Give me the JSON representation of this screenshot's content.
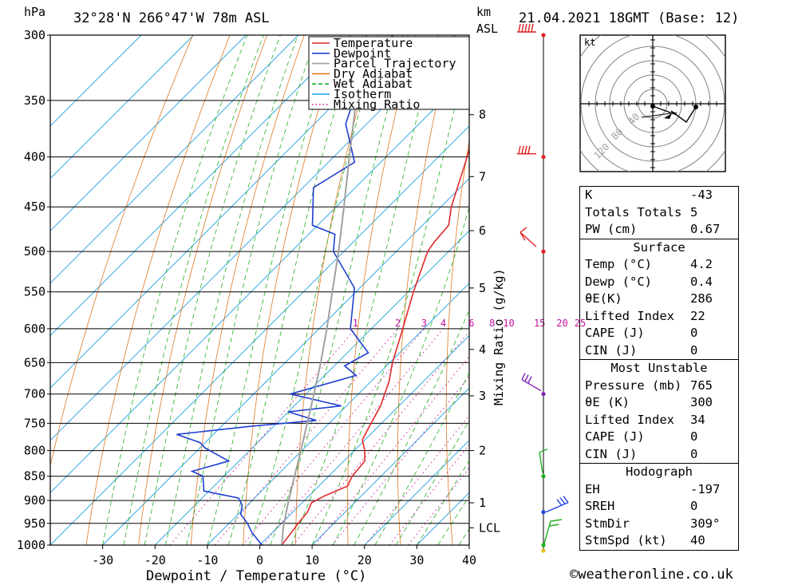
{
  "header": {
    "location": "32°28'N  266°47'W  78m  ASL",
    "datetime": "21.04.2021  18GMT  (Base: 12)",
    "pressure_unit": "hPa",
    "km_label": "km",
    "asl_label": "ASL"
  },
  "chart_data": {
    "type": "skew-t",
    "xlabel": "Dewpoint / Temperature (°C)",
    "ylabel_right": "Mixing Ratio (g/kg)",
    "pressure_ticks": [
      300,
      350,
      400,
      450,
      500,
      550,
      600,
      650,
      700,
      750,
      800,
      850,
      900,
      950,
      1000
    ],
    "temp_ticks": [
      -30,
      -20,
      -10,
      0,
      10,
      20,
      30,
      40
    ],
    "xlim": [
      -40,
      40
    ],
    "ylim": [
      1000,
      300
    ],
    "skew": 45,
    "km_ticks": [
      {
        "label": "8",
        "p": 362
      },
      {
        "label": "7",
        "p": 419
      },
      {
        "label": "6",
        "p": 476
      },
      {
        "label": "5",
        "p": 545
      },
      {
        "label": "4",
        "p": 630
      },
      {
        "label": "3",
        "p": 703
      },
      {
        "label": "2",
        "p": 800
      },
      {
        "label": "1",
        "p": 905
      },
      {
        "label": "LCL",
        "p": 960
      }
    ],
    "mixing_ratio_labels": [
      "1",
      "2",
      "3",
      "4",
      "6",
      "8",
      "10",
      "15",
      "20",
      "25"
    ],
    "mixing_ratio_values": [
      1,
      2,
      3,
      4,
      6,
      8,
      10,
      15,
      20,
      25
    ],
    "legend": [
      {
        "name": "Temperature",
        "color": "#e0282a",
        "style": "solid"
      },
      {
        "name": "Dewpoint",
        "color": "#1f3fd0",
        "style": "solid"
      },
      {
        "name": "Parcel Trajectory",
        "color": "#a0a0a0",
        "style": "solid"
      },
      {
        "name": "Dry Adiabat",
        "color": "#e07820",
        "style": "solid"
      },
      {
        "name": "Wet Adiabat",
        "color": "#20b020",
        "style": "dashed"
      },
      {
        "name": "Isotherm",
        "color": "#1fa0e0",
        "style": "solid"
      },
      {
        "name": "Mixing Ratio",
        "color": "#d020a0",
        "style": "dotted"
      }
    ],
    "series": [
      {
        "name": "Temperature",
        "color": "#e0282a",
        "points": [
          [
            1000,
            4.2
          ],
          [
            980,
            3.8
          ],
          [
            950,
            3.2
          ],
          [
            925,
            2.8
          ],
          [
            905,
            1.8
          ],
          [
            890,
            3.0
          ],
          [
            870,
            5.5
          ],
          [
            850,
            4.5
          ],
          [
            820,
            4.0
          ],
          [
            800,
            2.0
          ],
          [
            780,
            -0.5
          ],
          [
            760,
            -1.5
          ],
          [
            740,
            -2.5
          ],
          [
            720,
            -3.5
          ],
          [
            700,
            -5.0
          ],
          [
            680,
            -6.5
          ],
          [
            650,
            -9.5
          ],
          [
            600,
            -14.0
          ],
          [
            550,
            -19.0
          ],
          [
            500,
            -24.0
          ],
          [
            490,
            -24.5
          ],
          [
            470,
            -25.0
          ],
          [
            450,
            -28.0
          ],
          [
            400,
            -34.5
          ],
          [
            350,
            -42.5
          ],
          [
            300,
            -51.0
          ]
        ]
      },
      {
        "name": "Dewpoint",
        "color": "#1f3fd0",
        "points": [
          [
            1000,
            0.4
          ],
          [
            970,
            -4.0
          ],
          [
            950,
            -6.5
          ],
          [
            930,
            -9.5
          ],
          [
            910,
            -11.0
          ],
          [
            895,
            -13.0
          ],
          [
            880,
            -21.0
          ],
          [
            850,
            -24.0
          ],
          [
            840,
            -27.0
          ],
          [
            820,
            -22.0
          ],
          [
            795,
            -29.0
          ],
          [
            785,
            -31.0
          ],
          [
            770,
            -37.0
          ],
          [
            755,
            -24.0
          ],
          [
            745,
            -13.0
          ],
          [
            730,
            -20.0
          ],
          [
            720,
            -11.0
          ],
          [
            700,
            -23.0
          ],
          [
            670,
            -14.0
          ],
          [
            655,
            -18.0
          ],
          [
            635,
            -16.0
          ],
          [
            600,
            -24.0
          ],
          [
            545,
            -31.0
          ],
          [
            500,
            -42.0
          ],
          [
            480,
            -45.0
          ],
          [
            470,
            -51.0
          ],
          [
            430,
            -58.0
          ],
          [
            405,
            -55.0
          ],
          [
            370,
            -64.0
          ],
          [
            350,
            -67.0
          ],
          [
            300,
            -72.0
          ]
        ]
      },
      {
        "name": "Parcel Trajectory",
        "color": "#a0a0a0",
        "points": [
          [
            1000,
            4.2
          ],
          [
            960,
            1.2
          ],
          [
            950,
            0.5
          ],
          [
            900,
            -3.0
          ],
          [
            850,
            -6.5
          ],
          [
            800,
            -10.2
          ],
          [
            750,
            -14.2
          ],
          [
            700,
            -18.5
          ],
          [
            650,
            -23.2
          ],
          [
            600,
            -28.5
          ],
          [
            550,
            -34.5
          ],
          [
            500,
            -41.0
          ],
          [
            450,
            -48.5
          ],
          [
            400,
            -57.0
          ],
          [
            350,
            -66.5
          ],
          [
            300,
            -77.0
          ]
        ]
      }
    ]
  },
  "hodograph": {
    "unit": "kt",
    "ring_labels": [
      "40",
      "80",
      "120"
    ]
  },
  "indices": {
    "general": [
      {
        "label": "K",
        "value": "-43"
      },
      {
        "label": "Totals Totals",
        "value": "5"
      },
      {
        "label": "PW (cm)",
        "value": "0.67"
      }
    ],
    "surface": {
      "title": "Surface",
      "rows": [
        {
          "label": "Temp (°C)",
          "value": "4.2"
        },
        {
          "label": "Dewp (°C)",
          "value": "0.4"
        },
        {
          "label": "θE(K)",
          "value": "286"
        },
        {
          "label": "Lifted Index",
          "value": "22"
        },
        {
          "label": "CAPE (J)",
          "value": "0"
        },
        {
          "label": "CIN (J)",
          "value": "0"
        }
      ]
    },
    "most_unstable": {
      "title": "Most Unstable",
      "rows": [
        {
          "label": "Pressure (mb)",
          "value": "765"
        },
        {
          "label": "θE (K)",
          "value": "300"
        },
        {
          "label": "Lifted Index",
          "value": "34"
        },
        {
          "label": "CAPE (J)",
          "value": "0"
        },
        {
          "label": "CIN (J)",
          "value": "0"
        }
      ]
    },
    "hodograph_stats": {
      "title": "Hodograph",
      "rows": [
        {
          "label": "EH",
          "value": "-197"
        },
        {
          "label": "SREH",
          "value": "0"
        },
        {
          "label": "StmDir",
          "value": "309°"
        },
        {
          "label": "StmSpd (kt)",
          "value": "40"
        }
      ]
    }
  },
  "footer": {
    "copyright": "©weatheronline.co.uk"
  }
}
